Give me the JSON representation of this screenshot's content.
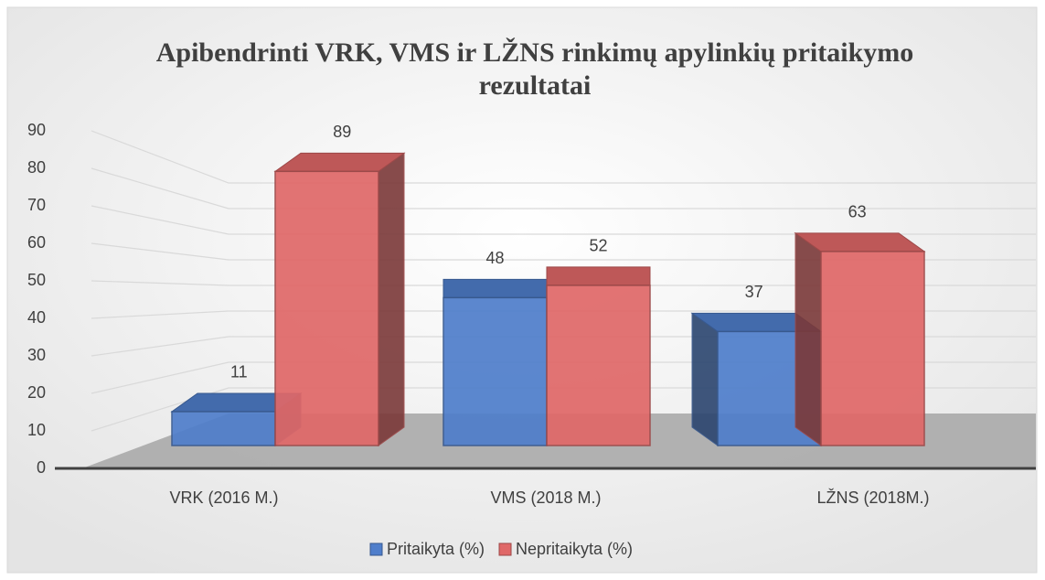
{
  "chart_data": {
    "type": "bar3d",
    "title": [
      "Apibendrinti VRK, VMS ir LŽNS rinkimų apylinkių pritaikymo",
      "rezultatai"
    ],
    "categories": [
      "VRK (2016 M.)",
      "VMS (2018 M.)",
      "LŽNS (2018M.)"
    ],
    "series": [
      {
        "name": "Pritaikyta (%)",
        "color": "#4f7ecb",
        "values": [
          11,
          48,
          37
        ]
      },
      {
        "name": "Nepritaikyta (%)",
        "color": "#e06868",
        "values": [
          89,
          52,
          63
        ]
      }
    ],
    "ylim": [
      0,
      90
    ],
    "yticks": [
      0,
      10,
      20,
      30,
      40,
      50,
      60,
      70,
      80,
      90
    ],
    "grid": true,
    "legend": "bottom"
  }
}
